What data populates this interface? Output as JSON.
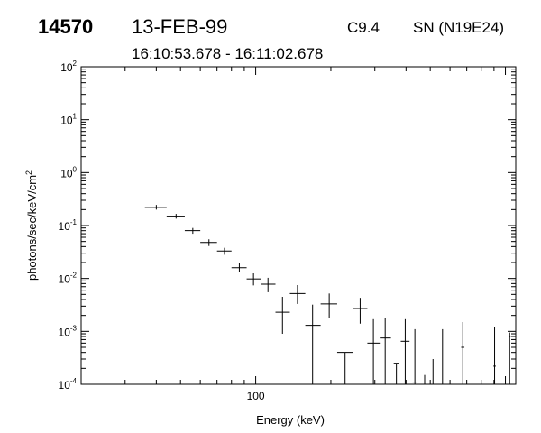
{
  "header": {
    "event_id": "14570",
    "date": "13-FEB-99",
    "goes_class": "C9.4",
    "location": "SN (N19E24)",
    "time_range": "16:10:53.678 - 16:11:02.678"
  },
  "chart_data": {
    "type": "scatter",
    "xlabel": "Energy (keV)",
    "ylabel": "photons/sec/keV/cm",
    "ylabel_superscript": "2",
    "x_scale": "log",
    "y_scale": "log",
    "xlim": [
      20,
      1100
    ],
    "ylim": [
      0.0001,
      100
    ],
    "x_tick_labels": [
      {
        "value": 100,
        "label": "100"
      }
    ],
    "y_tick_labels": [
      {
        "value": 0.0001,
        "base": "10",
        "exp": "-4"
      },
      {
        "value": 0.001,
        "base": "10",
        "exp": "-3"
      },
      {
        "value": 0.01,
        "base": "10",
        "exp": "-2"
      },
      {
        "value": 0.1,
        "base": "10",
        "exp": "-1"
      },
      {
        "value": 1,
        "base": "10",
        "exp": "0"
      },
      {
        "value": 10,
        "base": "10",
        "exp": "1"
      },
      {
        "value": 100,
        "base": "10",
        "exp": "2"
      }
    ],
    "points": [
      {
        "x": 40,
        "xlo": 36,
        "xhi": 44,
        "y": 0.22,
        "ylo": 0.2,
        "yhi": 0.245
      },
      {
        "x": 48,
        "xlo": 44,
        "xhi": 52,
        "y": 0.15,
        "ylo": 0.135,
        "yhi": 0.166
      },
      {
        "x": 56,
        "xlo": 52,
        "xhi": 60,
        "y": 0.08,
        "ylo": 0.07,
        "yhi": 0.09
      },
      {
        "x": 65,
        "xlo": 60,
        "xhi": 70,
        "y": 0.048,
        "ylo": 0.041,
        "yhi": 0.055
      },
      {
        "x": 75,
        "xlo": 70,
        "xhi": 80,
        "y": 0.033,
        "ylo": 0.028,
        "yhi": 0.038
      },
      {
        "x": 86,
        "xlo": 80,
        "xhi": 92,
        "y": 0.016,
        "ylo": 0.013,
        "yhi": 0.02
      },
      {
        "x": 98,
        "xlo": 92,
        "xhi": 105,
        "y": 0.0098,
        "ylo": 0.0074,
        "yhi": 0.0125
      },
      {
        "x": 112,
        "xlo": 105,
        "xhi": 120,
        "y": 0.0078,
        "ylo": 0.0055,
        "yhi": 0.0103
      },
      {
        "x": 128,
        "xlo": 120,
        "xhi": 137,
        "y": 0.0023,
        "ylo": 0.0009,
        "yhi": 0.0045
      },
      {
        "x": 147,
        "xlo": 137,
        "xhi": 158,
        "y": 0.0052,
        "ylo": 0.0033,
        "yhi": 0.0075
      },
      {
        "x": 169,
        "xlo": 158,
        "xhi": 182,
        "y": 0.0013,
        "ylo": 0.0001,
        "yhi": 0.0032
      },
      {
        "x": 197,
        "xlo": 182,
        "xhi": 212,
        "y": 0.0033,
        "ylo": 0.0018,
        "yhi": 0.0052
      },
      {
        "x": 228,
        "xlo": 212,
        "xhi": 246,
        "y": 0.0004,
        "ylo": 0.0001,
        "yhi": 0.0004
      },
      {
        "x": 262,
        "xlo": 246,
        "xhi": 280,
        "y": 0.0027,
        "ylo": 0.0014,
        "yhi": 0.0043
      },
      {
        "x": 296,
        "xlo": 280,
        "xhi": 314,
        "y": 0.0006,
        "ylo": 0.0001,
        "yhi": 0.0017
      },
      {
        "x": 330,
        "xlo": 314,
        "xhi": 348,
        "y": 0.00075,
        "ylo": 0.0001,
        "yhi": 0.0018
      },
      {
        "x": 366,
        "xlo": 357,
        "xhi": 375,
        "y": 0.00025,
        "ylo": 0.0001,
        "yhi": 0.00025
      },
      {
        "x": 397,
        "xlo": 381,
        "xhi": 413,
        "y": 0.00065,
        "ylo": 0.0001,
        "yhi": 0.0017
      },
      {
        "x": 434,
        "xlo": 425,
        "xhi": 443,
        "y": 0.00011,
        "ylo": 0.0001,
        "yhi": 0.0011
      },
      {
        "x": 475,
        "xlo": 475,
        "xhi": 475,
        "y": 0.00015,
        "ylo": 0.0001,
        "yhi": 0.00015
      },
      {
        "x": 513,
        "xlo": 513,
        "xhi": 513,
        "y": 0.0003,
        "ylo": 0.0001,
        "yhi": 0.0003
      },
      {
        "x": 560,
        "xlo": 560,
        "xhi": 560,
        "y": 0.0006,
        "ylo": 0.0001,
        "yhi": 0.0011
      },
      {
        "x": 675,
        "xlo": 665,
        "xhi": 685,
        "y": 0.0005,
        "ylo": 0.0001,
        "yhi": 0.0015
      },
      {
        "x": 905,
        "xlo": 895,
        "xhi": 915,
        "y": 0.00022,
        "ylo": 0.0001,
        "yhi": 0.0012
      },
      {
        "x": 1040,
        "xlo": 1030,
        "xhi": 1050,
        "y": 0.0008,
        "ylo": 0.0001,
        "yhi": 0.00095
      }
    ]
  }
}
